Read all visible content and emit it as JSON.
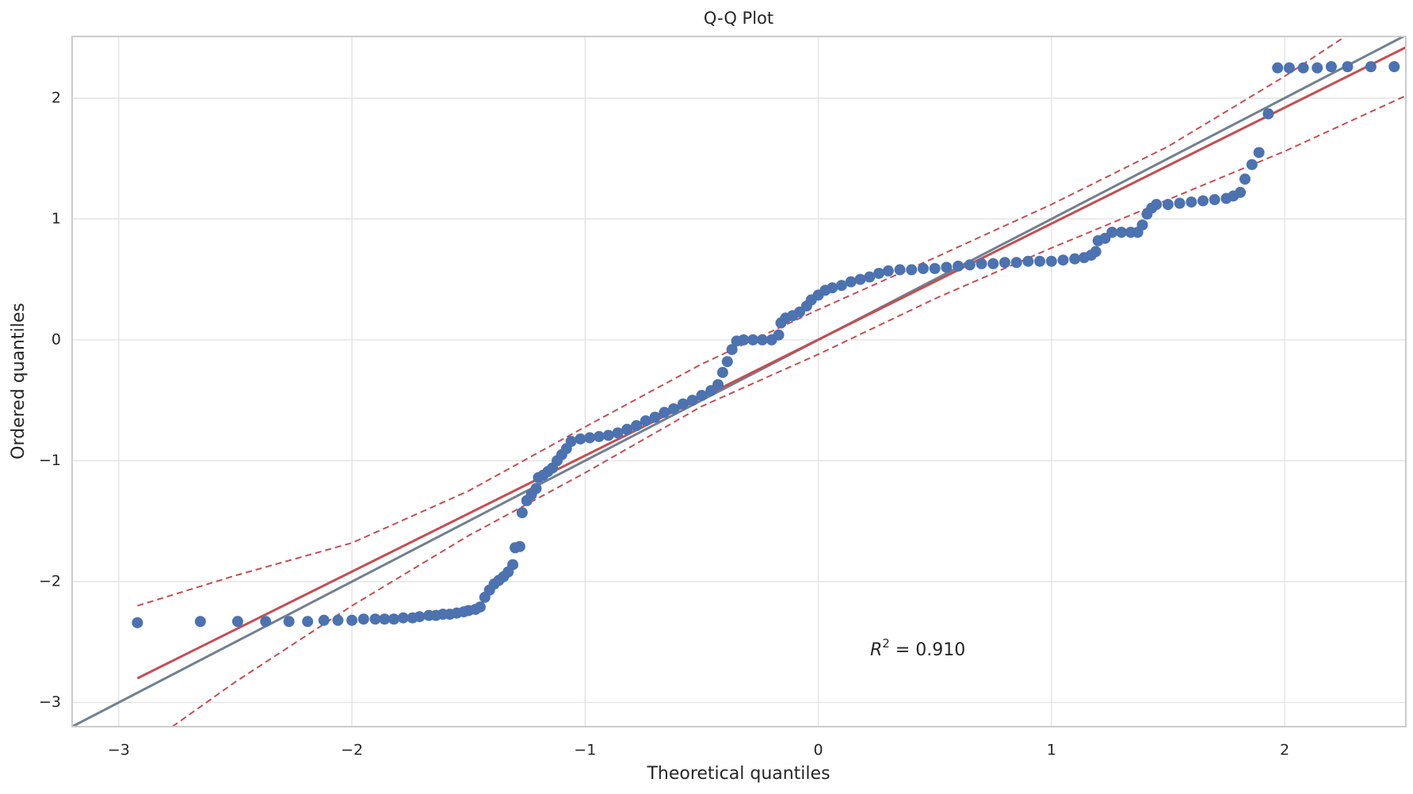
{
  "chart_data": {
    "type": "scatter",
    "title": "Q-Q Plot",
    "x_label": "Theoretical quantiles",
    "y_label": "Ordered quantiles",
    "annotation": {
      "symbol": "R",
      "exponent": "2",
      "text": " = 0.910"
    },
    "xlim": [
      -3.2,
      2.52
    ],
    "ylim": [
      -3.2,
      2.51
    ],
    "xticks": [
      {
        "value": -3,
        "label": "−3"
      },
      {
        "value": -2,
        "label": "−2"
      },
      {
        "value": -1,
        "label": "−1"
      },
      0,
      1,
      2
    ],
    "yticks": [
      {
        "value": -3,
        "label": "−3"
      },
      {
        "value": -2,
        "label": "−2"
      },
      {
        "value": -1,
        "label": "−1"
      },
      0,
      1,
      2
    ],
    "grid": true,
    "x": [
      -2.92,
      -2.65,
      -2.49,
      -2.37,
      -2.27,
      -2.19,
      -2.12,
      -2.06,
      -2.0,
      -1.95,
      -1.9,
      -1.86,
      -1.82,
      -1.78,
      -1.74,
      -1.71,
      -1.67,
      -1.64,
      -1.61,
      -1.58,
      -1.55,
      -1.52,
      -1.5,
      -1.47,
      -1.45,
      -1.43,
      -1.41,
      -1.39,
      -1.37,
      -1.35,
      -1.33,
      -1.31,
      -1.3,
      -1.28,
      -1.27,
      -1.25,
      -1.23,
      -1.21,
      -1.2,
      -1.18,
      -1.16,
      -1.14,
      -1.12,
      -1.1,
      -1.08,
      -1.06,
      -1.02,
      -0.98,
      -0.94,
      -0.9,
      -0.86,
      -0.82,
      -0.78,
      -0.74,
      -0.7,
      -0.66,
      -0.62,
      -0.58,
      -0.54,
      -0.5,
      -0.46,
      -0.43,
      -0.41,
      -0.39,
      -0.37,
      -0.35,
      -0.32,
      -0.28,
      -0.24,
      -0.2,
      -0.17,
      -0.16,
      -0.14,
      -0.11,
      -0.08,
      -0.05,
      -0.03,
      0.0,
      0.03,
      0.06,
      0.1,
      0.14,
      0.18,
      0.22,
      0.26,
      0.3,
      0.35,
      0.4,
      0.45,
      0.5,
      0.55,
      0.6,
      0.65,
      0.7,
      0.75,
      0.8,
      0.85,
      0.9,
      0.95,
      1.0,
      1.05,
      1.1,
      1.14,
      1.17,
      1.19,
      1.2,
      1.23,
      1.26,
      1.3,
      1.34,
      1.37,
      1.39,
      1.41,
      1.43,
      1.45,
      1.5,
      1.55,
      1.6,
      1.65,
      1.7,
      1.75,
      1.78,
      1.81,
      1.83,
      1.86,
      1.89,
      1.93,
      1.97,
      2.02,
      2.08,
      2.14,
      2.2,
      2.27,
      2.37,
      2.47
    ],
    "series": [
      {
        "color": "#4c72b0",
        "values": [
          -2.34,
          -2.33,
          -2.33,
          -2.33,
          -2.33,
          -2.33,
          -2.32,
          -2.32,
          -2.32,
          -2.31,
          -2.31,
          -2.31,
          -2.31,
          -2.3,
          -2.3,
          -2.29,
          -2.28,
          -2.28,
          -2.27,
          -2.27,
          -2.26,
          -2.25,
          -2.24,
          -2.23,
          -2.21,
          -2.13,
          -2.07,
          -2.02,
          -1.99,
          -1.96,
          -1.92,
          -1.86,
          -1.72,
          -1.71,
          -1.43,
          -1.33,
          -1.28,
          -1.23,
          -1.14,
          -1.12,
          -1.09,
          -1.06,
          -1.0,
          -0.95,
          -0.9,
          -0.84,
          -0.82,
          -0.81,
          -0.8,
          -0.79,
          -0.77,
          -0.74,
          -0.71,
          -0.67,
          -0.64,
          -0.6,
          -0.57,
          -0.53,
          -0.5,
          -0.46,
          -0.42,
          -0.37,
          -0.27,
          -0.18,
          -0.08,
          -0.01,
          0.0,
          0.0,
          0.0,
          0.0,
          0.04,
          0.14,
          0.18,
          0.2,
          0.23,
          0.28,
          0.33,
          0.37,
          0.41,
          0.43,
          0.45,
          0.48,
          0.5,
          0.52,
          0.55,
          0.57,
          0.58,
          0.58,
          0.59,
          0.59,
          0.6,
          0.61,
          0.62,
          0.63,
          0.63,
          0.64,
          0.64,
          0.65,
          0.65,
          0.65,
          0.66,
          0.67,
          0.68,
          0.7,
          0.73,
          0.82,
          0.84,
          0.89,
          0.89,
          0.89,
          0.89,
          0.95,
          1.04,
          1.09,
          1.12,
          1.12,
          1.13,
          1.14,
          1.15,
          1.16,
          1.17,
          1.19,
          1.22,
          1.33,
          1.45,
          1.55,
          1.87,
          2.25,
          2.25,
          2.25,
          2.25,
          2.26,
          2.26,
          2.26,
          2.26
        ]
      }
    ],
    "lines": [
      {
        "color": "#708090",
        "dashed": false,
        "x": [
          -3.2,
          2.52
        ],
        "values": [
          -3.2,
          2.52
        ]
      },
      {
        "color": "#c44e52",
        "dashed": false,
        "x": [
          -2.92,
          2.52
        ],
        "values": [
          -2.8,
          2.42
        ]
      },
      {
        "color": "#c44e52",
        "dashed": true,
        "x": [
          -2.92,
          -2.5,
          -2,
          -1.5,
          -1,
          -0.5,
          0,
          0.5,
          1,
          1.5,
          2,
          2.26
        ],
        "values": [
          -2.2,
          -1.95,
          -1.68,
          -1.25,
          -0.72,
          -0.2,
          0.25,
          0.68,
          1.12,
          1.6,
          2.18,
          2.51
        ]
      },
      {
        "color": "#c44e52",
        "dashed": true,
        "x": [
          -2.77,
          -2.5,
          -2,
          -1.5,
          -1,
          -0.5,
          0,
          0.5,
          1,
          1.5,
          2,
          2.52
        ],
        "values": [
          -3.2,
          -2.83,
          -2.2,
          -1.62,
          -1.1,
          -0.55,
          -0.12,
          0.34,
          0.76,
          1.16,
          1.56,
          2.02
        ]
      }
    ]
  }
}
